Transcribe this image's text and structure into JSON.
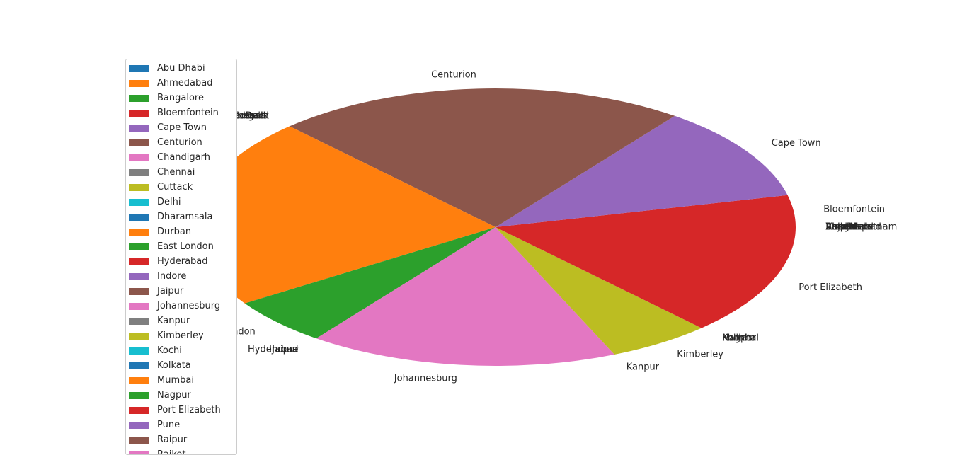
{
  "chart_data": {
    "type": "pie",
    "labels": [
      "Abu Dhabi",
      "Ahmedabad",
      "Bangalore",
      "Bloemfontein",
      "Cape Town",
      "Centurion",
      "Chandigarh",
      "Chennai",
      "Cuttack",
      "Delhi",
      "Dharamsala",
      "Durban",
      "East London",
      "Hyderabad",
      "Indore",
      "Jaipur",
      "Johannesburg",
      "Kanpur",
      "Kimberley",
      "Kochi",
      "Kolkata",
      "Mumbai",
      "Nagpur",
      "Port Elizabeth",
      "Pune",
      "Raipur",
      "Rajkot",
      "Ranchi",
      "Visakhapatnam"
    ],
    "values": [
      0,
      0,
      0,
      2,
      6,
      12,
      0,
      0,
      0,
      0,
      0,
      12,
      3,
      0,
      0,
      0,
      9,
      0,
      3,
      0,
      0,
      0,
      0,
      7,
      0,
      0,
      0,
      0,
      0
    ],
    "colors": [
      "#1f77b4",
      "#ff7f0e",
      "#2ca02c",
      "#d62728",
      "#9467bd",
      "#8c564b",
      "#e377c2",
      "#7f7f7f",
      "#bcbd22",
      "#17becf",
      "#1f77b4",
      "#ff7f0e",
      "#2ca02c",
      "#d62728",
      "#9467bd",
      "#8c564b",
      "#e377c2",
      "#7f7f7f",
      "#bcbd22",
      "#17becf",
      "#1f77b4",
      "#ff7f0e",
      "#2ca02c",
      "#d62728",
      "#9467bd",
      "#8c564b",
      "#e377c2",
      "#7f7f7f",
      "#bcbd22"
    ],
    "start_angle_deg": 0,
    "direction": "counterclockwise",
    "legend_location": "left",
    "legend_entries": [
      "Abu Dhabi",
      "Ahmedabad",
      "Bangalore",
      "Bloemfontein",
      "Cape Town",
      "Centurion",
      "Chandigarh",
      "Chennai",
      "Cuttack",
      "Delhi",
      "Dharamsala",
      "Durban",
      "East London",
      "Hyderabad",
      "Indore",
      "Jaipur",
      "Johannesburg",
      "Kanpur",
      "Kimberley",
      "Kochi",
      "Kolkata",
      "Mumbai",
      "Nagpur",
      "Port Elizabeth",
      "Pune",
      "Raipur",
      "Rajkot"
    ]
  }
}
